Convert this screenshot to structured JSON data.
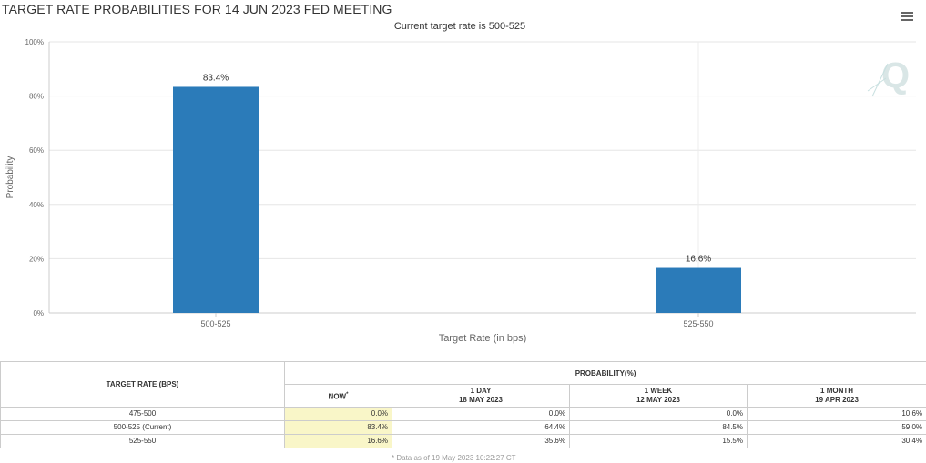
{
  "header": {
    "title": "TARGET RATE PROBABILITIES FOR 14 JUN 2023 FED MEETING",
    "subtitle": "Current target rate is 500-525"
  },
  "chart_data": {
    "type": "bar",
    "categories": [
      "500-525",
      "525-550"
    ],
    "values": [
      83.4,
      16.6
    ],
    "data_labels": [
      "83.4%",
      "16.6%"
    ],
    "xlabel": "Target Rate (in bps)",
    "ylabel": "Probability",
    "ylim": [
      0,
      100
    ],
    "yticks": [
      "0%",
      "20%",
      "40%",
      "60%",
      "80%",
      "100%"
    ],
    "grid": true,
    "bar_color": "#2b7bb9"
  },
  "table": {
    "rate_header": "TARGET RATE (BPS)",
    "prob_header": "PROBABILITY(%)",
    "columns": [
      {
        "label": "NOW",
        "sup": "*",
        "date": ""
      },
      {
        "label": "1 DAY",
        "date": "18 MAY 2023"
      },
      {
        "label": "1 WEEK",
        "date": "12 MAY 2023"
      },
      {
        "label": "1 MONTH",
        "date": "19 APR 2023"
      }
    ],
    "rows": [
      {
        "rate": "475-500",
        "values": [
          "0.0%",
          "0.0%",
          "0.0%",
          "10.6%"
        ]
      },
      {
        "rate": "500-525 (Current)",
        "values": [
          "83.4%",
          "64.4%",
          "84.5%",
          "59.0%"
        ]
      },
      {
        "rate": "525-550",
        "values": [
          "16.6%",
          "35.6%",
          "15.5%",
          "30.4%"
        ]
      }
    ],
    "footnote": "* Data as of 19 May 2023 10:22:27 CT"
  },
  "colors": {
    "bar": "#2b7bb9",
    "now_highlight": "#f9f6c8",
    "grid": "#e6e6e6"
  },
  "icons": {
    "menu": "hamburger-menu-icon",
    "watermark": "quikstrike-q-logo"
  }
}
